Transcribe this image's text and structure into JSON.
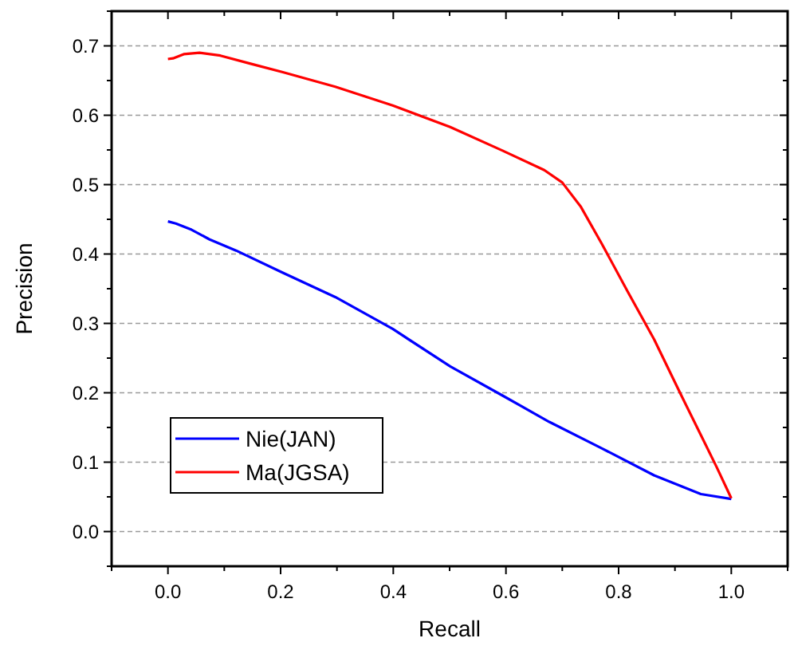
{
  "chart_data": {
    "type": "line",
    "xlabel": "Recall",
    "ylabel": "Precision",
    "xlim": [
      -0.1,
      1.1
    ],
    "ylim": [
      -0.05,
      0.75
    ],
    "xticks": [
      {
        "value": 0,
        "label": "0.0"
      },
      0.2,
      0.4,
      0.6,
      0.8,
      {
        "value": 1,
        "label": "1.0"
      }
    ],
    "yticks": [
      {
        "value": 0,
        "label": "0.0"
      },
      0.1,
      0.2,
      0.3,
      0.4,
      0.5,
      0.6,
      0.7
    ],
    "grid": "y",
    "legend": "bottom left",
    "line_style": "solid",
    "marker": "none",
    "series": [
      {
        "name": "Nie(JAN)",
        "color": "#0000ff",
        "x": [
          0,
          0.014,
          0.042,
          0.074,
          0.121,
          0.204,
          0.297,
          0.399,
          0.501,
          0.594,
          0.677,
          0.77,
          0.863,
          0.946,
          1.0
        ],
        "values": [
          0.447,
          0.444,
          0.435,
          0.421,
          0.405,
          0.373,
          0.338,
          0.292,
          0.238,
          0.196,
          0.158,
          0.12,
          0.081,
          0.054,
          0.047
        ]
      },
      {
        "name": "Ma(JGSA)",
        "color": "#ff0000",
        "x": [
          0,
          0.009,
          0.028,
          0.056,
          0.093,
          0.148,
          0.204,
          0.297,
          0.399,
          0.501,
          0.594,
          0.668,
          0.7,
          0.733,
          0.77,
          0.816,
          0.863,
          0.909,
          0.946,
          0.974,
          1.0
        ],
        "values": [
          0.681,
          0.682,
          0.688,
          0.69,
          0.686,
          0.674,
          0.662,
          0.641,
          0.614,
          0.583,
          0.549,
          0.521,
          0.503,
          0.468,
          0.415,
          0.346,
          0.277,
          0.2,
          0.139,
          0.093,
          0.048
        ]
      }
    ]
  }
}
